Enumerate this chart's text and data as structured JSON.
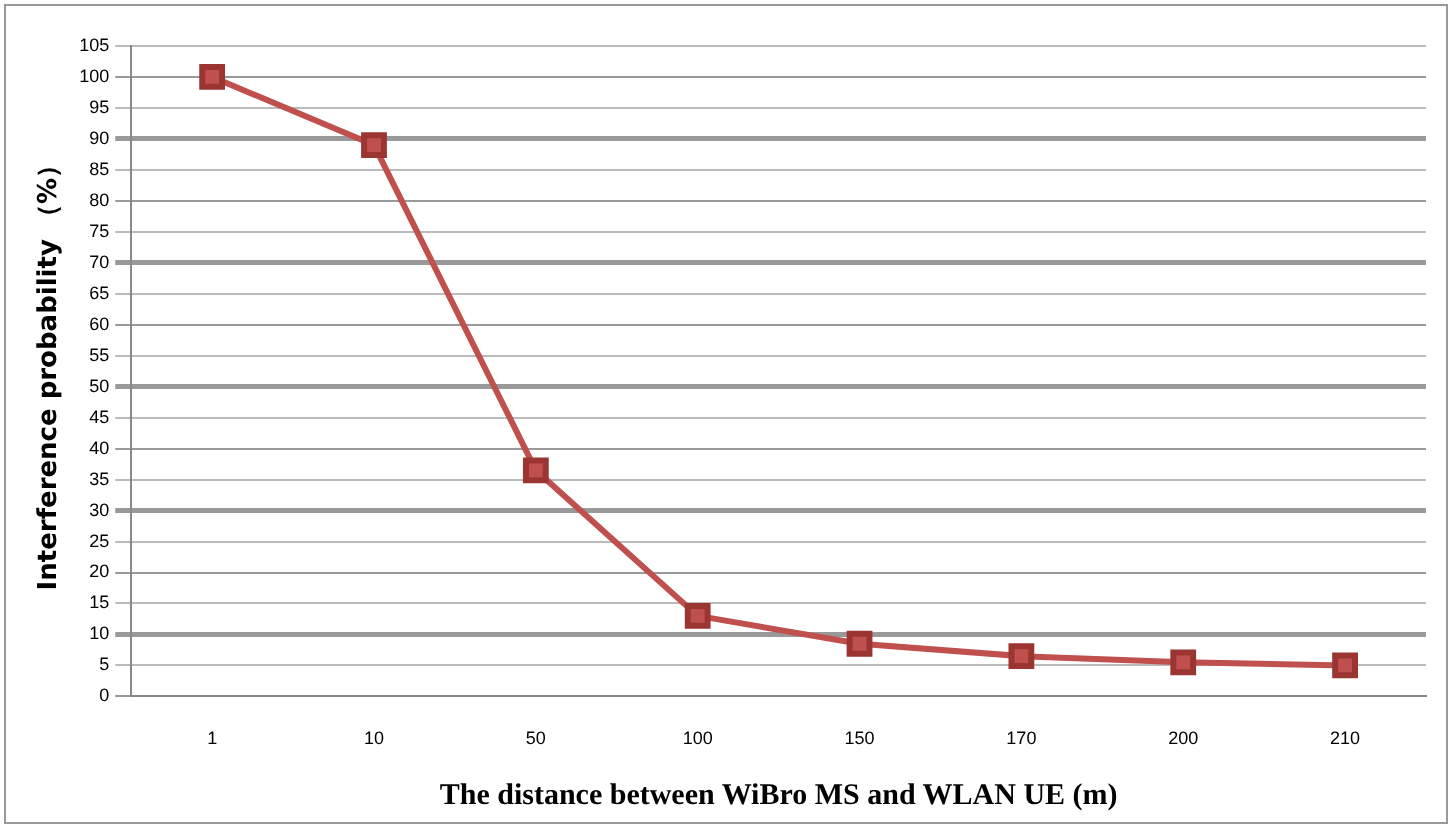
{
  "chart_data": {
    "type": "line",
    "xlabel": "The distance between WiBro MS and WLAN UE (m)",
    "ylabel": "Interference probability （%）",
    "categories": [
      "1",
      "10",
      "50",
      "100",
      "150",
      "170",
      "200",
      "210"
    ],
    "series": [
      {
        "color": "#c0504d",
        "values": [
          100,
          89,
          36.5,
          13,
          8.5,
          6.5,
          5.5,
          5
        ]
      }
    ],
    "ylim": [
      0,
      105
    ],
    "yticks": [
      0,
      5,
      10,
      15,
      20,
      25,
      30,
      35,
      40,
      45,
      50,
      55,
      60,
      65,
      70,
      75,
      80,
      85,
      90,
      95,
      100,
      105
    ],
    "grid": "y",
    "marker": "square",
    "line_style": "solid",
    "legend": false
  }
}
